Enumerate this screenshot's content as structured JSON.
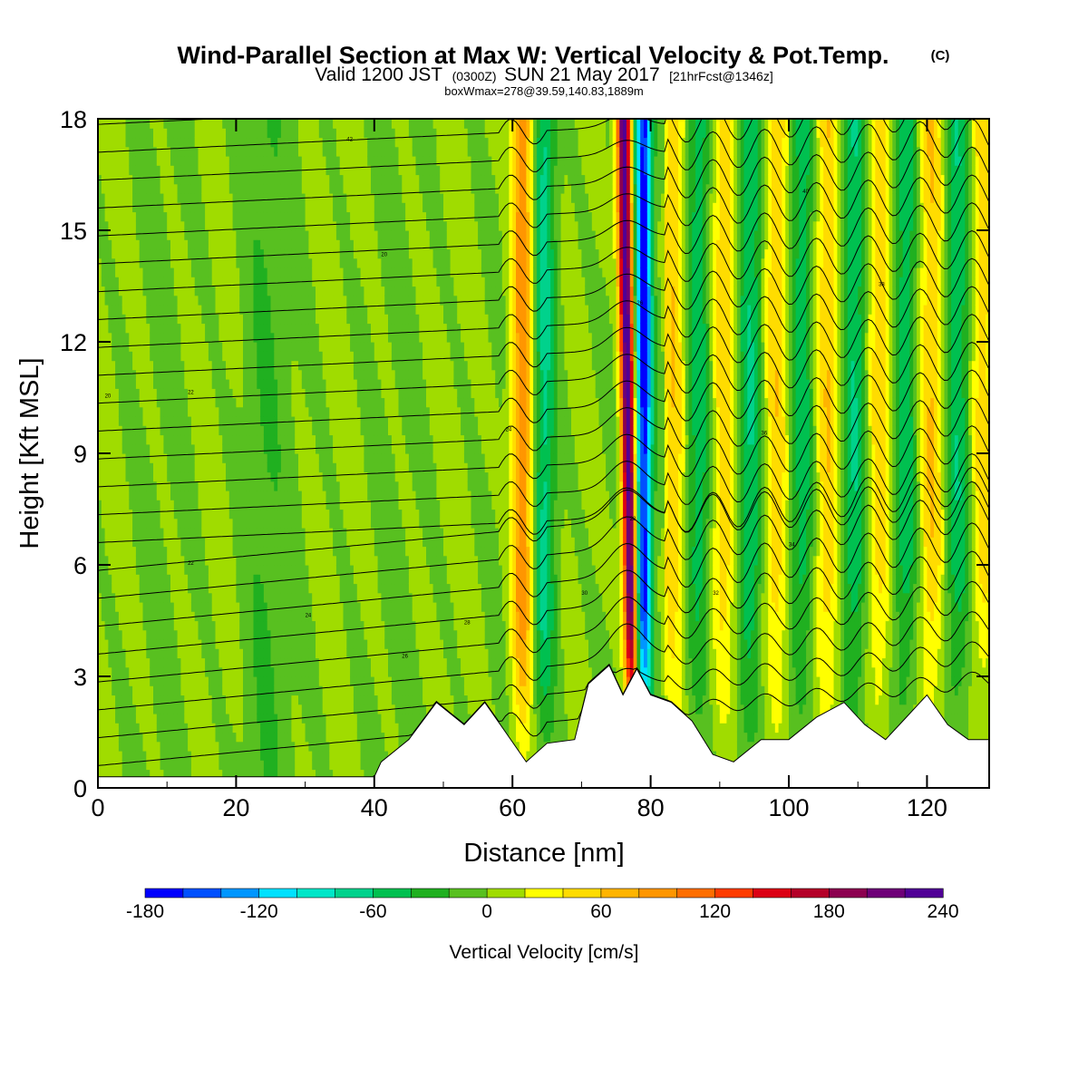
{
  "chart_data": {
    "type": "heatmap",
    "title": "Wind-Parallel Section at Max W: Vertical Velocity & Pot.Temp.",
    "title_mark": "(C)",
    "subtitle_parts": [
      "Valid 1200 JST",
      "(0300Z)",
      "SUN 21 May 2017",
      "[21hrFcst@1346z]"
    ],
    "note": "boxWmax=278@39.59,140.83,1889m",
    "xlabel": "Distance [nm]",
    "ylabel": "Height [Kft MSL]",
    "xlim": [
      0,
      129
    ],
    "ylim": [
      0,
      18
    ],
    "x_ticks": [
      "0",
      "20",
      "40",
      "60",
      "80",
      "100",
      "120"
    ],
    "y_ticks": [
      "0",
      "3",
      "6",
      "9",
      "12",
      "15",
      "18"
    ],
    "colorbar": {
      "label": "Vertical Velocity [cm/s]",
      "min": -180,
      "max": 240,
      "step": 20,
      "tick_labels": [
        "-180",
        "-120",
        "-60",
        "0",
        "60",
        "120",
        "180",
        "240"
      ],
      "colors": [
        "#0000ff",
        "#0050ff",
        "#0096ff",
        "#00e1ff",
        "#00e6c8",
        "#00d28c",
        "#00c050",
        "#20b020",
        "#58c020",
        "#a0dc00",
        "#ffff00",
        "#ffdc00",
        "#ffb400",
        "#ff9600",
        "#ff6e00",
        "#ff3c00",
        "#dc0014",
        "#b40028",
        "#8c0050",
        "#6e0078",
        "#500096"
      ]
    },
    "series": [
      {
        "centers": [
          61.5,
          76.8
        ],
        "amplitudes": [
          100,
          240
        ],
        "widths": [
          1.7,
          1.0
        ]
      },
      {
        "centers": [
          64.5,
          79.0
        ],
        "amplitudes": [
          -70,
          -170
        ],
        "widths": [
          1.8,
          1.2
        ]
      }
    ],
    "wave_train": {
      "start_x": 82,
      "wavelength": 7.5,
      "amplitude": 55
    },
    "terrain": {
      "x": [
        0,
        40,
        41,
        45,
        49,
        53,
        56,
        59,
        62,
        65,
        69,
        71,
        74,
        76,
        78,
        80,
        83,
        86,
        89,
        92,
        96,
        100,
        104,
        108,
        111,
        114,
        117,
        120,
        123,
        126,
        129
      ],
      "ft": [
        300,
        300,
        700,
        1300,
        2300,
        1700,
        2300,
        1500,
        700,
        1200,
        1300,
        2800,
        3300,
        2500,
        3200,
        2500,
        2300,
        1800,
        900,
        700,
        1300,
        1300,
        1900,
        2300,
        1700,
        1300,
        1900,
        2500,
        1700,
        1300,
        1300
      ]
    },
    "theta_contour_labels": [
      "20",
      "22",
      "24",
      "26",
      "28",
      "30",
      "32",
      "34",
      "36",
      "38",
      "40",
      "42"
    ]
  }
}
